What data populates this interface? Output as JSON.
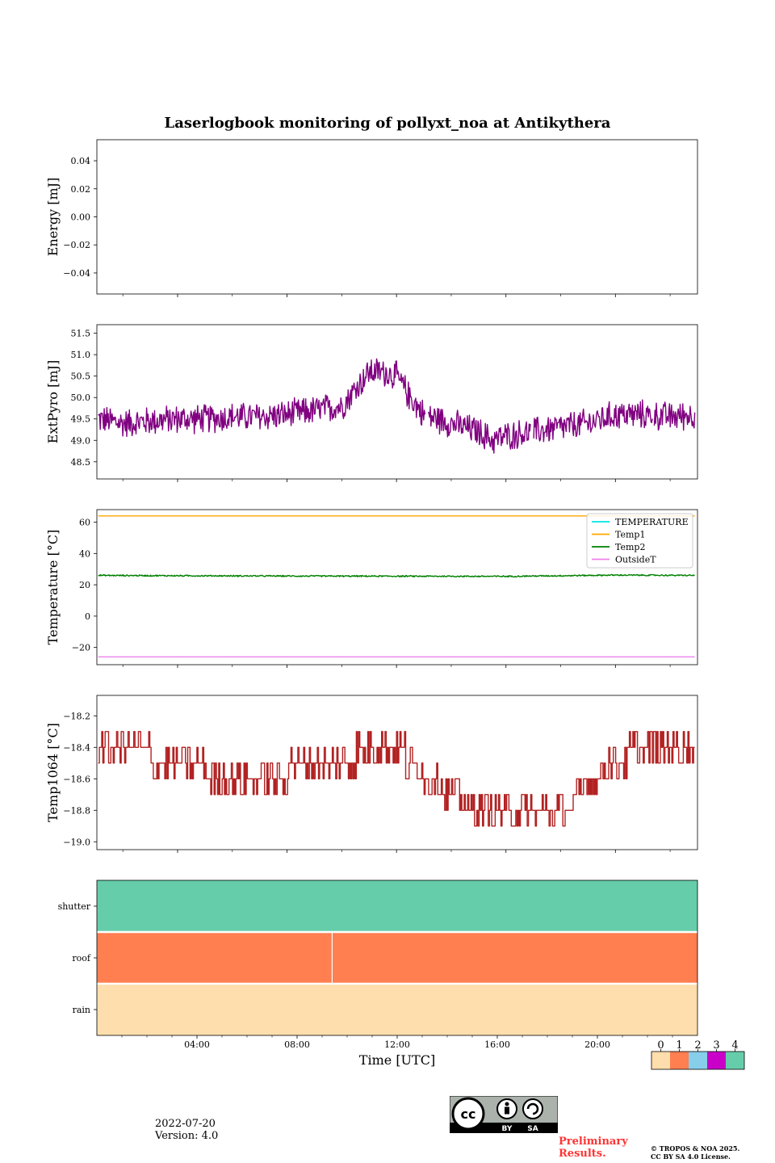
{
  "figure": {
    "title": "Laserlogbook monitoring of pollyxt_noa at Antikythera",
    "date": "2022-07-20",
    "version": "Version: 4.0",
    "preliminary": "Preliminary Results.",
    "copyright": [
      "© TROPOS & NOA 2025.",
      "CC BY SA 4.0 License."
    ],
    "cc_labels": [
      "BY",
      "SA"
    ]
  },
  "chart_data": [
    {
      "type": "line",
      "ylabel": "Energy [mJ]",
      "ylim": [
        -0.055,
        0.055
      ],
      "yticks": [
        -0.04,
        -0.02,
        0.0,
        0.02,
        0.04
      ],
      "ytick_labels": [
        "−0.04",
        "−0.02",
        "0.00",
        "0.02",
        "0.04"
      ],
      "xlim": [
        1.05,
        23.0
      ],
      "series": []
    },
    {
      "type": "line",
      "ylabel": "ExtPyro [mJ]",
      "ylim": [
        48.1,
        51.7
      ],
      "yticks": [
        48.5,
        49.0,
        49.5,
        50.0,
        50.5,
        51.0,
        51.5
      ],
      "ytick_labels": [
        "48.5",
        "49.0",
        "49.5",
        "50.0",
        "50.5",
        "51.0",
        "51.5"
      ],
      "xlim": [
        1.05,
        23.0
      ],
      "series": [
        {
          "color": "#800080",
          "x": [
            1.1,
            2.0,
            3.0,
            4.0,
            5.0,
            6.0,
            7.0,
            8.0,
            9.0,
            10.0,
            10.5,
            11.0,
            11.5,
            12.0,
            12.5,
            13.0,
            14.0,
            15.0,
            15.5,
            16.0,
            17.0,
            18.0,
            19.0,
            20.0,
            21.0,
            22.0,
            22.9
          ],
          "y": [
            49.5,
            49.4,
            49.45,
            49.5,
            49.5,
            49.55,
            49.55,
            49.6,
            49.7,
            49.8,
            50.2,
            50.6,
            50.6,
            50.5,
            50.0,
            49.6,
            49.4,
            49.2,
            49.0,
            49.1,
            49.2,
            49.3,
            49.4,
            49.6,
            49.6,
            49.55,
            49.6
          ],
          "noise_amplitude": 0.38,
          "gaps": [
            [
              13.05,
              13.15
            ],
            [
              16.9,
              17.0
            ],
            [
              21.35,
              21.42
            ]
          ]
        }
      ]
    },
    {
      "type": "line",
      "ylabel": "Temperature [°C]",
      "ylim": [
        -31,
        68
      ],
      "yticks": [
        -20,
        0,
        20,
        40,
        60
      ],
      "ytick_labels": [
        "−20",
        "0",
        "20",
        "40",
        "60"
      ],
      "xlim": [
        1.05,
        23.0
      ],
      "legend": "top-right",
      "series": [
        {
          "name": "TEMPERATURE",
          "color": "#00e5e5",
          "x": [],
          "y": []
        },
        {
          "name": "Temp1",
          "color": "#ffa500",
          "x": [
            1.1,
            22.9
          ],
          "y": [
            64,
            64
          ]
        },
        {
          "name": "Temp2",
          "color": "#008000",
          "x": [
            1.1,
            4.0,
            8.0,
            12.0,
            16.0,
            20.0,
            22.9
          ],
          "y": [
            26,
            25.8,
            25.6,
            25.5,
            25.4,
            26.2,
            26.0
          ],
          "noise_amplitude": 0.5
        },
        {
          "name": "OutsideT",
          "color": "#ee82ee",
          "x": [
            1.1,
            22.9
          ],
          "y": [
            -26,
            -26
          ]
        }
      ]
    },
    {
      "type": "line",
      "ylabel": "Temp1064 [°C]",
      "ylim": [
        -19.05,
        -18.07
      ],
      "yticks": [
        -19.0,
        -18.8,
        -18.6,
        -18.4,
        -18.2
      ],
      "ytick_labels": [
        "−19.0",
        "−18.8",
        "−18.6",
        "−18.4",
        "−18.2"
      ],
      "xlim": [
        1.05,
        23.0
      ],
      "series": [
        {
          "color": "#b22222",
          "x": [
            1.1,
            2.0,
            3.0,
            4.0,
            5.0,
            6.0,
            7.0,
            8.0,
            9.0,
            10.0,
            11.0,
            12.0,
            13.0,
            14.0,
            15.0,
            16.0,
            17.0,
            18.0,
            18.5,
            19.0,
            20.0,
            21.0,
            22.0,
            22.9
          ],
          "y": [
            -18.4,
            -18.4,
            -18.45,
            -18.5,
            -18.55,
            -18.6,
            -18.6,
            -18.55,
            -18.5,
            -18.5,
            -18.4,
            -18.4,
            -18.55,
            -18.7,
            -18.8,
            -18.85,
            -18.85,
            -18.8,
            -18.75,
            -18.6,
            -18.5,
            -18.4,
            -18.4,
            -18.4
          ],
          "step": 0.1
        }
      ]
    },
    {
      "type": "heatmap",
      "xlabel": "Time [UTC]",
      "xlim": [
        0,
        24
      ],
      "xticks": [
        4,
        8,
        12,
        16,
        20
      ],
      "xtick_labels": [
        "04:00",
        "08:00",
        "12:00",
        "16:00",
        "20:00"
      ],
      "rows": [
        "shutter",
        "roof",
        "rain"
      ],
      "row_values": {
        "shutter": 4,
        "roof": 1,
        "rain": 0
      },
      "roof_marker_hour": 9.4,
      "colorbar": {
        "labels": [
          "0",
          "1",
          "2",
          "3",
          "4"
        ],
        "colors": [
          "#ffdead",
          "#ff7f50",
          "#87ceeb",
          "#c800c8",
          "#66cdaa"
        ]
      }
    }
  ]
}
